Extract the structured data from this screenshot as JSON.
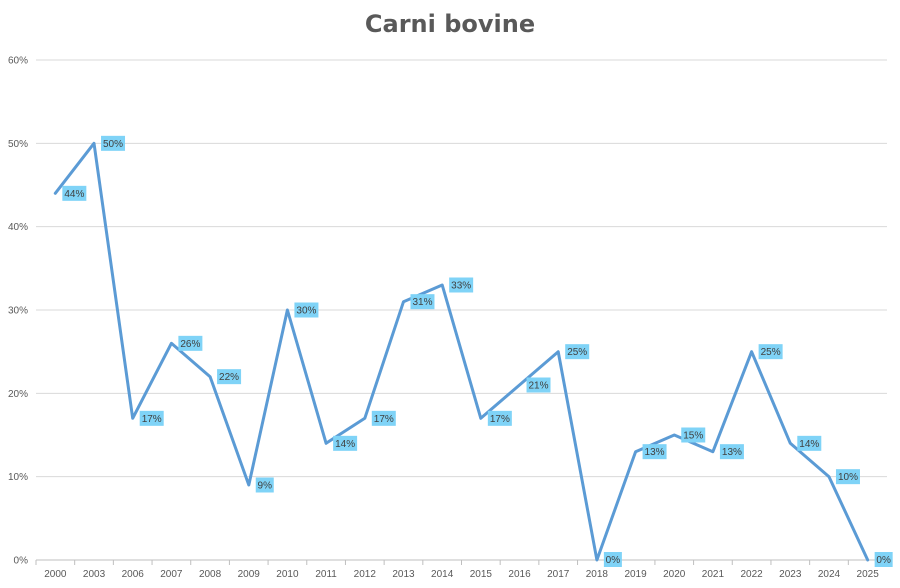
{
  "chart_data": {
    "type": "line",
    "title": "Carni bovine",
    "xlabel": "",
    "ylabel": "",
    "categories": [
      "2000",
      "2003",
      "2006",
      "2007",
      "2008",
      "2009",
      "2010",
      "2011",
      "2012",
      "2013",
      "2014",
      "2015",
      "2016",
      "2017",
      "2018",
      "2019",
      "2020",
      "2021",
      "2022",
      "2023",
      "2024",
      "2025"
    ],
    "series": [
      {
        "values": [
          44,
          50,
          17,
          26,
          22,
          9,
          30,
          14,
          17,
          31,
          33,
          17,
          21,
          25,
          0,
          13,
          15,
          13,
          25,
          14,
          10,
          0
        ],
        "labels": [
          "44%",
          "50%",
          "17%",
          "26%",
          "22%",
          "9%",
          "30%",
          "14%",
          "17%",
          "31%",
          "33%",
          "17%",
          "21%",
          "25%",
          "0%",
          "13%",
          "15%",
          "13%",
          "25%",
          "14%",
          "10%",
          "0%"
        ]
      }
    ],
    "ylim": [
      0,
      60
    ],
    "yticks": [
      "0%",
      "10%",
      "20%",
      "30%",
      "40%",
      "50%",
      "60%"
    ],
    "grid": true,
    "line_color": "#5b9bd5",
    "label_bg_color": "#7fd3f7"
  }
}
